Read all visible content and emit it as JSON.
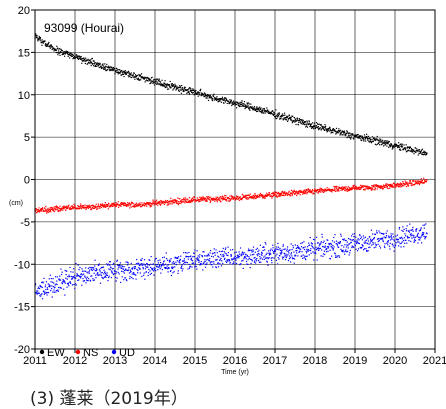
{
  "chart_data": {
    "type": "scatter",
    "station_label": "93099 (Hourai)",
    "xlabel": "Time (yr)",
    "ylabel": "(cm)",
    "xlim": [
      2011,
      2021
    ],
    "ylim": [
      -20,
      20
    ],
    "x_ticks": [
      2011,
      2012,
      2013,
      2014,
      2015,
      2016,
      2017,
      2018,
      2019,
      2020,
      2021
    ],
    "y_ticks": [
      20,
      15,
      10,
      5,
      0,
      -5,
      -10,
      -15,
      -20
    ],
    "legend_position": "bottom-left",
    "series": [
      {
        "name": "EW",
        "color": "#000000",
        "x": [
          2011.0,
          2011.2,
          2011.5,
          2012.0,
          2012.5,
          2013.0,
          2013.5,
          2014.0,
          2014.5,
          2015.0,
          2015.5,
          2016.0,
          2016.5,
          2017.0,
          2017.5,
          2018.0,
          2018.5,
          2019.0,
          2019.5,
          2020.0,
          2020.5,
          2020.8
        ],
        "y": [
          17.0,
          16.2,
          15.3,
          14.5,
          13.7,
          12.9,
          12.2,
          11.6,
          10.9,
          10.3,
          9.6,
          9.0,
          8.4,
          7.7,
          7.0,
          6.3,
          5.7,
          5.1,
          4.6,
          4.0,
          3.4,
          3.0
        ]
      },
      {
        "name": "NS",
        "color": "#ff0000",
        "x": [
          2011.0,
          2011.5,
          2012.0,
          2012.5,
          2013.0,
          2013.5,
          2014.0,
          2014.5,
          2015.0,
          2015.5,
          2016.0,
          2016.5,
          2017.0,
          2017.5,
          2018.0,
          2018.5,
          2019.0,
          2019.5,
          2020.0,
          2020.5,
          2020.8
        ],
        "y": [
          -3.7,
          -3.5,
          -3.3,
          -3.2,
          -3.0,
          -3.0,
          -2.8,
          -2.6,
          -2.4,
          -2.3,
          -2.2,
          -2.0,
          -1.8,
          -1.6,
          -1.4,
          -1.2,
          -1.0,
          -0.9,
          -0.7,
          -0.4,
          -0.2
        ]
      },
      {
        "name": "UD",
        "color": "#0000ff",
        "x": [
          2011.0,
          2011.5,
          2012.0,
          2012.5,
          2013.0,
          2013.5,
          2014.0,
          2014.5,
          2015.0,
          2015.5,
          2016.0,
          2016.5,
          2017.0,
          2017.5,
          2018.0,
          2018.5,
          2019.0,
          2019.5,
          2020.0,
          2020.5,
          2020.8
        ],
        "y": [
          -13.2,
          -12.5,
          -11.5,
          -11.0,
          -10.8,
          -10.5,
          -10.2,
          -10.0,
          -9.6,
          -9.3,
          -9.2,
          -9.0,
          -8.7,
          -8.5,
          -8.2,
          -7.9,
          -7.6,
          -7.2,
          -6.9,
          -6.4,
          -6.1
        ]
      }
    ]
  },
  "caption": "(3) 蓬莱（2019年）"
}
